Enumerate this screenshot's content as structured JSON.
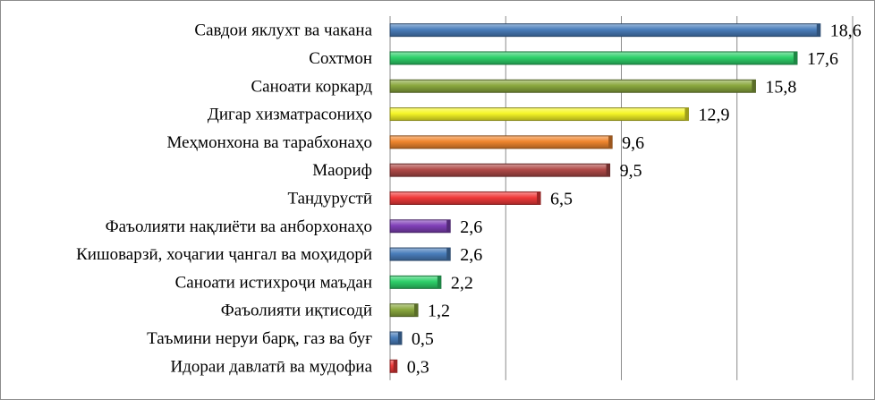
{
  "chart_data": {
    "type": "bar",
    "orientation": "horizontal",
    "title": "",
    "xlabel": "",
    "ylabel": "",
    "xlim": [
      0,
      20
    ],
    "grid": true,
    "legend": "none",
    "categories": [
      "Савдои яклухт ва чакана",
      "Сохтмон",
      "Саноати коркард",
      "Дигар хизматрасониҳо",
      "Меҳмонхона ва тарабхонаҳо",
      "Маориф",
      "Тандурустӣ",
      "Фаъолияти нақлиёти ва анборхонаҳо",
      "Кишоварзӣ, хоҷагии ҷангал ва моҳидорӣ",
      "Саноати истихроҷи маъдан",
      "Фаъолияти иқтисодӣ",
      "Таъмини неруи барқ, газ ва буғ",
      "Идораи давлатӣ ва мудофиа"
    ],
    "values": [
      18.6,
      17.6,
      15.8,
      12.9,
      9.6,
      9.5,
      6.5,
      2.6,
      2.6,
      2.2,
      1.2,
      0.5,
      0.3
    ],
    "value_labels": [
      "18,6",
      "17,6",
      "15,8",
      "12,9",
      "9,6",
      "9,5",
      "6,5",
      "2,6",
      "2,6",
      "2,2",
      "1,2",
      "0,5",
      "0,3"
    ],
    "colors": [
      "#4a7ebb",
      "#2ed06a",
      "#8aa83e",
      "#f5f526",
      "#f0862e",
      "#b04a48",
      "#f03a3a",
      "#8040b8",
      "#4a7ebb",
      "#2ed06a",
      "#8aa83e",
      "#4a7ebb",
      "#f03a3a"
    ]
  }
}
